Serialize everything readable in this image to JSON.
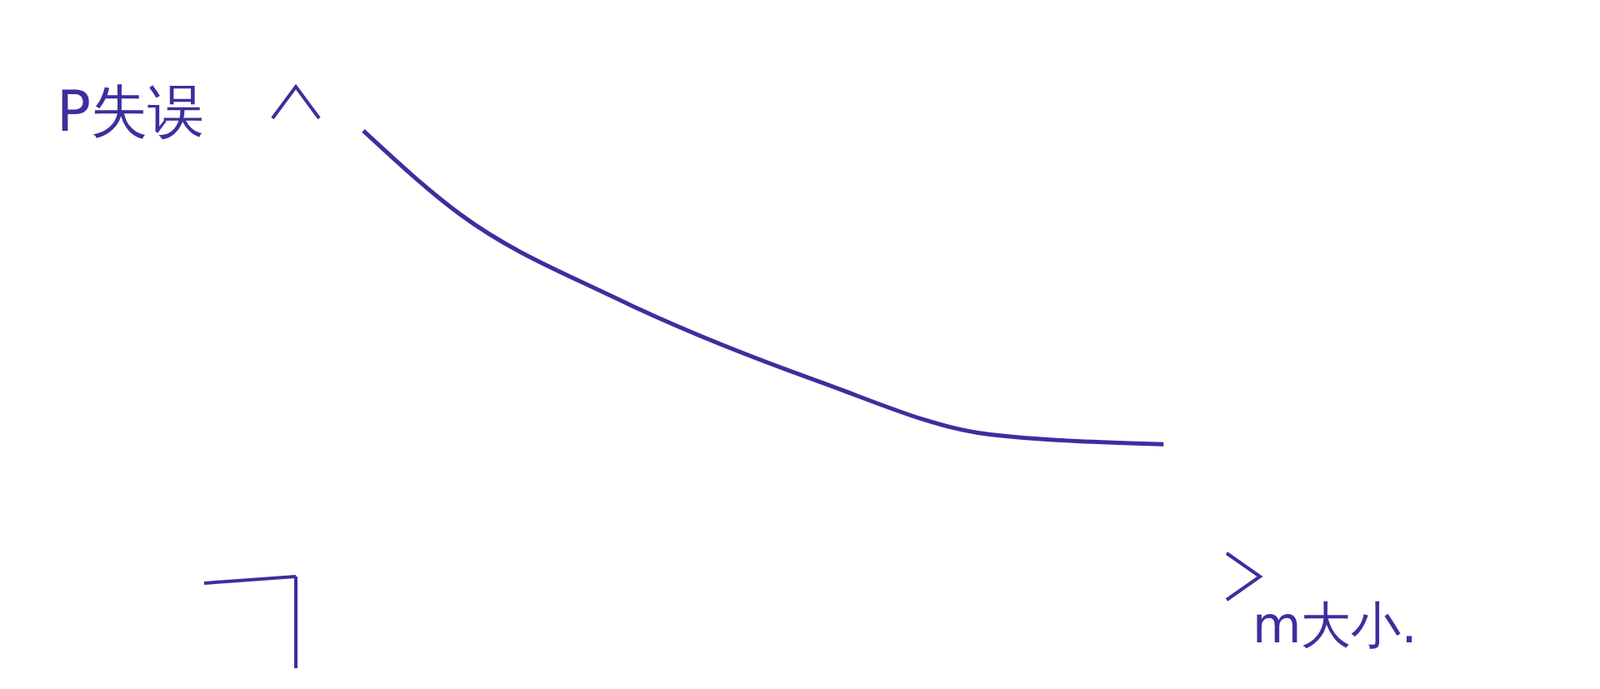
{
  "chart_data": {
    "type": "line",
    "x_label": "m大小.",
    "y_label": "P失误",
    "x": [
      0.7,
      1.7,
      3.3,
      5.4,
      7.2,
      9.0
    ],
    "values": [
      9.1,
      7.4,
      5.7,
      4.0,
      2.9,
      2.7
    ],
    "color": "#3b2f9e",
    "xlim": [
      0,
      10
    ],
    "ylim": [
      0,
      10
    ],
    "tick_labels": false
  }
}
